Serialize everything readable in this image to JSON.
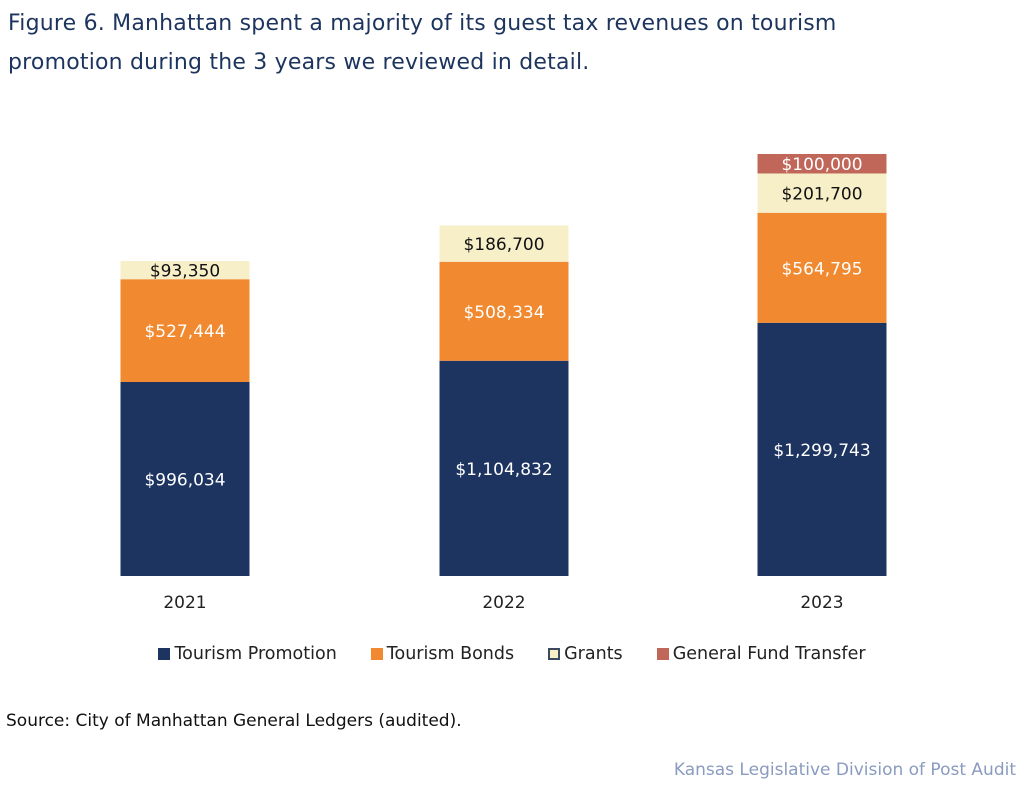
{
  "title_line1": "Figure 6. Manhattan spent a majority of its guest tax revenues on tourism",
  "title_line2": "promotion during the 3 years we reviewed in detail.",
  "source": "Source: City of Manhattan General Ledgers (audited).",
  "credit": "Kansas Legislative Division of Post Audit",
  "chart_data": {
    "type": "bar",
    "stacked": true,
    "title": "Figure 6. Manhattan spent a majority of its guest tax revenues on tourism promotion during the 3 years we reviewed in detail.",
    "xlabel": "",
    "ylabel": "",
    "grid": false,
    "legend_position": "bottom",
    "categories": [
      "2021",
      "2022",
      "2023"
    ],
    "ylim": [
      0,
      2166238
    ],
    "series": [
      {
        "name": "Tourism Promotion",
        "color": "#1d3461",
        "label_color": "#ffffff",
        "values": [
          996034,
          1104832,
          1299743
        ],
        "labels": [
          "$996,034",
          "$1,104,832",
          "$1,299,743"
        ]
      },
      {
        "name": "Tourism Bonds",
        "color": "#f0892f",
        "label_color": "#ffffff",
        "values": [
          527444,
          508334,
          564795
        ],
        "labels": [
          "$527,444",
          "$508,334",
          "$564,795"
        ]
      },
      {
        "name": "Grants",
        "color": "#f7efc8",
        "label_color": "#111111",
        "values": [
          93350,
          186700,
          201700
        ],
        "labels": [
          "$93,350",
          "$186,700",
          "$201,700"
        ]
      },
      {
        "name": "General Fund Transfer",
        "color": "#c0675a",
        "label_color": "#ffffff",
        "values": [
          0,
          0,
          100000
        ],
        "labels": [
          "",
          "",
          "$100,000"
        ]
      }
    ]
  }
}
